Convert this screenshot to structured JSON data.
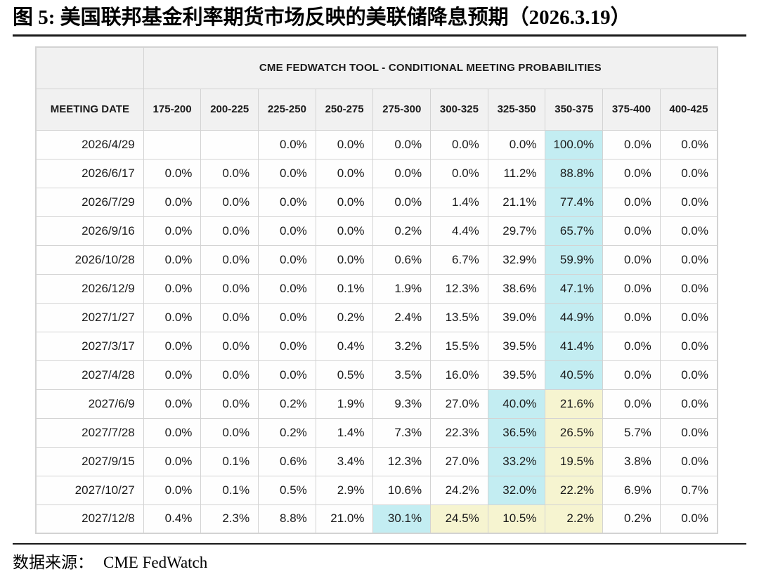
{
  "figure": {
    "title": "图 5:  美国联邦基金利率期货市场反映的美联储降息预期（2026.3.19）",
    "source_label": "数据来源：",
    "source_value": "CME FedWatch"
  },
  "colors": {
    "cyan_highlight": "#c3edf2",
    "yellow_highlight": "#f6f4d0",
    "header_bg": "#f1f1f1",
    "grid_border": "#d3d3d3",
    "rule": "#1a1a1a"
  },
  "chart_data": {
    "type": "table",
    "title": "CME FEDWATCH TOOL - CONDITIONAL MEETING PROBABILITIES",
    "columns": [
      "MEETING DATE",
      "175-200",
      "200-225",
      "225-250",
      "250-275",
      "275-300",
      "300-325",
      "325-350",
      "350-375",
      "375-400",
      "400-425"
    ],
    "rows": [
      {
        "date": "2026/4/29",
        "values": [
          "",
          "",
          "0.0%",
          "0.0%",
          "0.0%",
          "0.0%",
          "0.0%",
          "100.0%",
          "0.0%",
          "0.0%"
        ],
        "highlights": {
          "7": "cyan"
        }
      },
      {
        "date": "2026/6/17",
        "values": [
          "0.0%",
          "0.0%",
          "0.0%",
          "0.0%",
          "0.0%",
          "0.0%",
          "11.2%",
          "88.8%",
          "0.0%",
          "0.0%"
        ],
        "highlights": {
          "7": "cyan"
        }
      },
      {
        "date": "2026/7/29",
        "values": [
          "0.0%",
          "0.0%",
          "0.0%",
          "0.0%",
          "0.0%",
          "1.4%",
          "21.1%",
          "77.4%",
          "0.0%",
          "0.0%"
        ],
        "highlights": {
          "7": "cyan"
        }
      },
      {
        "date": "2026/9/16",
        "values": [
          "0.0%",
          "0.0%",
          "0.0%",
          "0.0%",
          "0.2%",
          "4.4%",
          "29.7%",
          "65.7%",
          "0.0%",
          "0.0%"
        ],
        "highlights": {
          "7": "cyan"
        }
      },
      {
        "date": "2026/10/28",
        "values": [
          "0.0%",
          "0.0%",
          "0.0%",
          "0.0%",
          "0.6%",
          "6.7%",
          "32.9%",
          "59.9%",
          "0.0%",
          "0.0%"
        ],
        "highlights": {
          "7": "cyan"
        }
      },
      {
        "date": "2026/12/9",
        "values": [
          "0.0%",
          "0.0%",
          "0.0%",
          "0.1%",
          "1.9%",
          "12.3%",
          "38.6%",
          "47.1%",
          "0.0%",
          "0.0%"
        ],
        "highlights": {
          "7": "cyan"
        }
      },
      {
        "date": "2027/1/27",
        "values": [
          "0.0%",
          "0.0%",
          "0.0%",
          "0.2%",
          "2.4%",
          "13.5%",
          "39.0%",
          "44.9%",
          "0.0%",
          "0.0%"
        ],
        "highlights": {
          "7": "cyan"
        }
      },
      {
        "date": "2027/3/17",
        "values": [
          "0.0%",
          "0.0%",
          "0.0%",
          "0.4%",
          "3.2%",
          "15.5%",
          "39.5%",
          "41.4%",
          "0.0%",
          "0.0%"
        ],
        "highlights": {
          "7": "cyan"
        }
      },
      {
        "date": "2027/4/28",
        "values": [
          "0.0%",
          "0.0%",
          "0.0%",
          "0.5%",
          "3.5%",
          "16.0%",
          "39.5%",
          "40.5%",
          "0.0%",
          "0.0%"
        ],
        "highlights": {
          "7": "cyan"
        }
      },
      {
        "date": "2027/6/9",
        "values": [
          "0.0%",
          "0.0%",
          "0.2%",
          "1.9%",
          "9.3%",
          "27.0%",
          "40.0%",
          "21.6%",
          "0.0%",
          "0.0%"
        ],
        "highlights": {
          "6": "cyan",
          "7": "yellow"
        }
      },
      {
        "date": "2027/7/28",
        "values": [
          "0.0%",
          "0.0%",
          "0.2%",
          "1.4%",
          "7.3%",
          "22.3%",
          "36.5%",
          "26.5%",
          "5.7%",
          "0.0%"
        ],
        "highlights": {
          "6": "cyan",
          "7": "yellow"
        }
      },
      {
        "date": "2027/9/15",
        "values": [
          "0.0%",
          "0.1%",
          "0.6%",
          "3.4%",
          "12.3%",
          "27.0%",
          "33.2%",
          "19.5%",
          "3.8%",
          "0.0%"
        ],
        "highlights": {
          "6": "cyan",
          "7": "yellow"
        }
      },
      {
        "date": "2027/10/27",
        "values": [
          "0.0%",
          "0.1%",
          "0.5%",
          "2.9%",
          "10.6%",
          "24.2%",
          "32.0%",
          "22.2%",
          "6.9%",
          "0.7%"
        ],
        "highlights": {
          "6": "cyan",
          "7": "yellow"
        }
      },
      {
        "date": "2027/12/8",
        "values": [
          "0.4%",
          "2.3%",
          "8.8%",
          "21.0%",
          "30.1%",
          "24.5%",
          "10.5%",
          "2.2%",
          "0.2%",
          "0.0%"
        ],
        "highlights": {
          "4": "cyan",
          "5": "yellow",
          "6": "yellow",
          "7": "yellow"
        }
      }
    ]
  }
}
